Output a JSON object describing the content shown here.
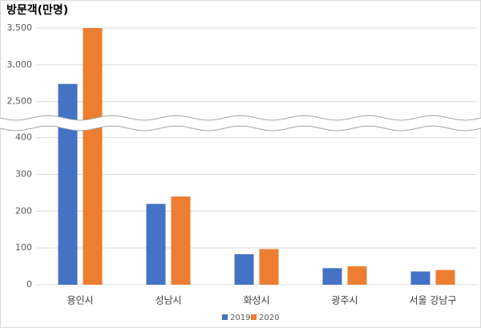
{
  "chart_data": {
    "type": "bar",
    "title": "방문객(만명)",
    "categories": [
      "용인시",
      "성남시",
      "화성시",
      "광주시",
      "서울 강남구"
    ],
    "series": [
      {
        "name": "2019",
        "color": "#4472c4",
        "values": [
          2740,
          220,
          83,
          45,
          36
        ]
      },
      {
        "name": "2020",
        "color": "#ed7d31",
        "values": [
          3500,
          240,
          97,
          50,
          40
        ]
      }
    ],
    "ylim": [
      0,
      3500
    ],
    "y_break": [
      430,
      2300
    ],
    "yticks": [
      0,
      100,
      200,
      300,
      400,
      {
        "value": 2500,
        "label": "2,500"
      },
      {
        "value": 3000,
        "label": "3,000"
      },
      {
        "value": 3500,
        "label": "3,500"
      }
    ],
    "grid": true,
    "legend": "bottom"
  }
}
